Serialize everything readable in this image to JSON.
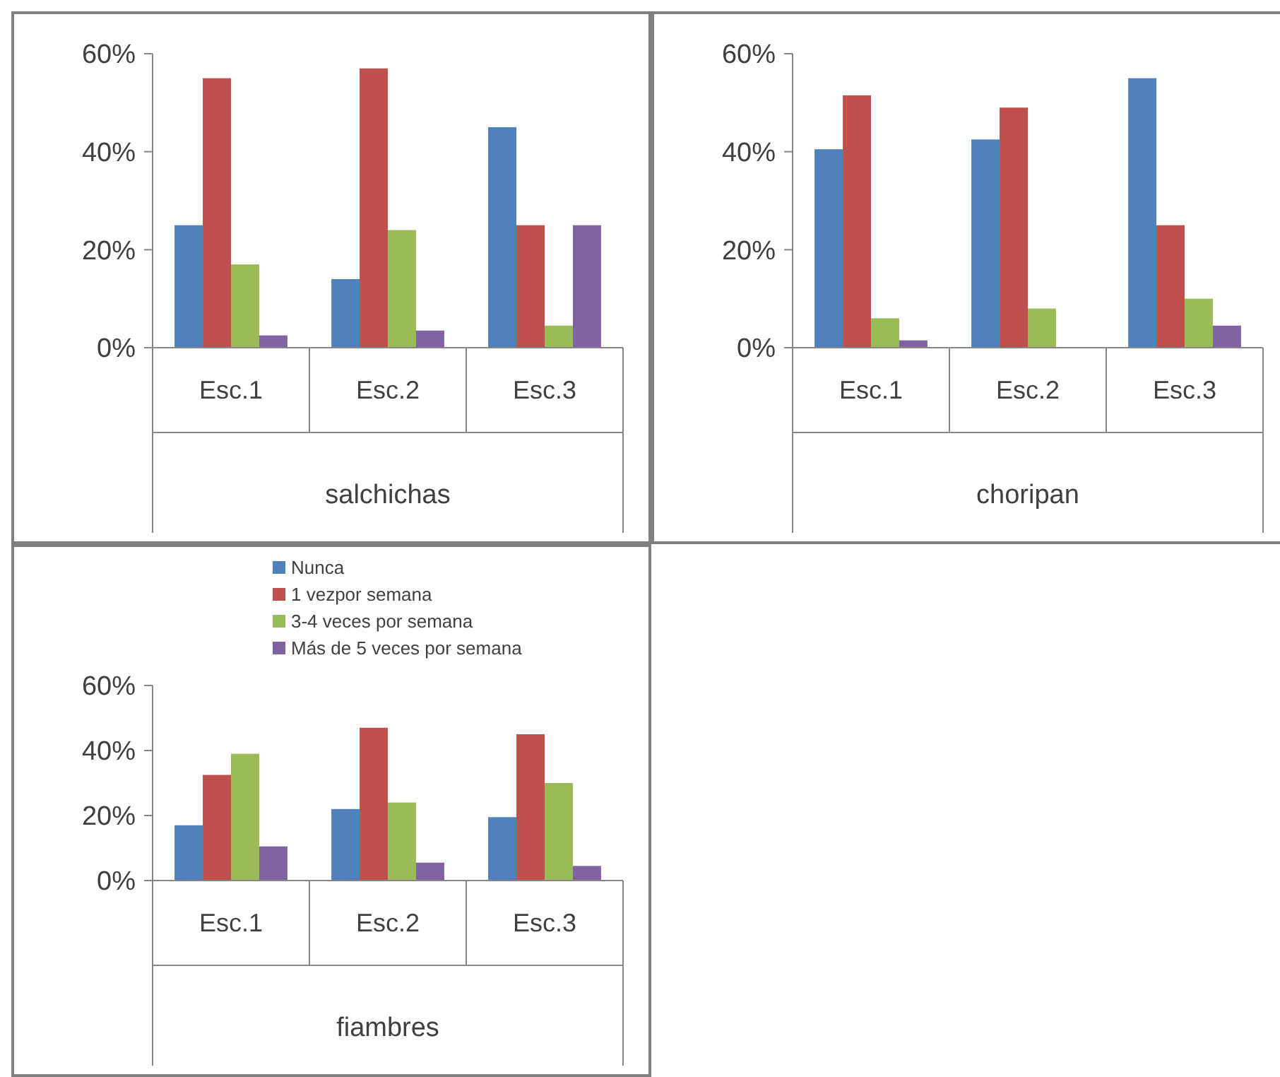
{
  "chart_data": [
    {
      "type": "bar",
      "xlabel": "salchichas",
      "categories": [
        "Esc.1",
        "Esc.2",
        "Esc.3"
      ],
      "ylim": [
        0,
        60
      ],
      "yticks": [
        {
          "value": 0,
          "label": "0%"
        },
        {
          "value": 20,
          "label": "20%"
        },
        {
          "value": 40,
          "label": "40%"
        },
        {
          "value": 60,
          "label": "60%"
        }
      ],
      "grid": false,
      "legend": false,
      "series": [
        {
          "color": "#4f81bd",
          "values": [
            25,
            14,
            45
          ]
        },
        {
          "color": "#c0504d",
          "values": [
            55,
            57,
            25
          ]
        },
        {
          "color": "#9bbb59",
          "values": [
            17,
            24,
            4.5
          ]
        },
        {
          "color": "#8064a2",
          "values": [
            2.5,
            3.5,
            25
          ]
        }
      ]
    },
    {
      "type": "bar",
      "xlabel": "choripan",
      "categories": [
        "Esc.1",
        "Esc.2",
        "Esc.3"
      ],
      "ylim": [
        0,
        60
      ],
      "yticks": [
        {
          "value": 0,
          "label": "0%"
        },
        {
          "value": 20,
          "label": "20%"
        },
        {
          "value": 40,
          "label": "40%"
        },
        {
          "value": 60,
          "label": "60%"
        }
      ],
      "grid": false,
      "legend": false,
      "series": [
        {
          "color": "#4f81bd",
          "values": [
            40.5,
            42.5,
            55
          ]
        },
        {
          "color": "#c0504d",
          "values": [
            51.5,
            49,
            25
          ]
        },
        {
          "color": "#9bbb59",
          "values": [
            6,
            8,
            10
          ]
        },
        {
          "color": "#8064a2",
          "values": [
            1.5,
            null,
            4.5
          ]
        }
      ]
    },
    {
      "type": "bar",
      "xlabel": "fiambres",
      "categories": [
        "Esc.1",
        "Esc.2",
        "Esc.3"
      ],
      "ylim": [
        0,
        60
      ],
      "yticks": [
        {
          "value": 0,
          "label": "0%"
        },
        {
          "value": 20,
          "label": "20%"
        },
        {
          "value": 40,
          "label": "40%"
        },
        {
          "value": 60,
          "label": "60%"
        }
      ],
      "grid": false,
      "legend": "top",
      "series": [
        {
          "name": "Nunca",
          "color": "#4f81bd",
          "values": [
            17,
            22,
            19.5
          ]
        },
        {
          "name": "1 vezpor semana",
          "color": "#c0504d",
          "values": [
            32.5,
            47,
            45
          ]
        },
        {
          "name": "3-4 veces por semana",
          "color": "#9bbb59",
          "values": [
            39,
            24,
            30
          ]
        },
        {
          "name": "Más de 5 veces por semana",
          "color": "#8064a2",
          "values": [
            10.5,
            5.5,
            4.5
          ]
        }
      ]
    }
  ]
}
